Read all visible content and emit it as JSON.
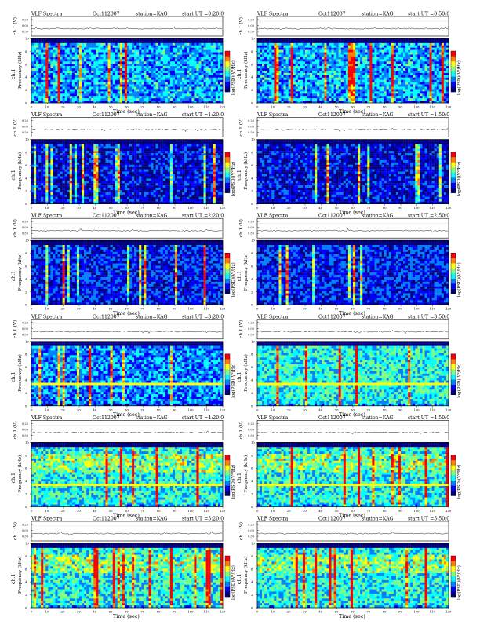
{
  "page": {
    "title_prefix": "VLF Spectra",
    "date": "Oct112007",
    "station_text": "station=KAG",
    "start_prefix": "start UT =",
    "ch_label": "ch.1 (V)",
    "freq_label_line1": "ch.1",
    "freq_label_line2": "Frequency (kHz)",
    "time_label": "Time (sec)",
    "colorbar_label": "log(PSD)(V²/Hz)"
  },
  "colors": {
    "background": "#ffffff",
    "axis": "#000000",
    "colormap": [
      "#00007f",
      "#0000ff",
      "#007fff",
      "#00ffff",
      "#7fff7f",
      "#ffff00",
      "#ff7f00",
      "#ff0000"
    ]
  },
  "chart_data": [
    {
      "type": "heatmap",
      "start": "0:20:0",
      "xlim": [
        0,
        120
      ],
      "ylim": [
        0,
        10
      ],
      "level": 0.35,
      "burst": 0.9,
      "line": false,
      "band": false,
      "ch_ticks": [
        "0.20",
        "0.00",
        "0.50"
      ]
    },
    {
      "type": "heatmap",
      "start": "0:50:0",
      "xlim": [
        0,
        120
      ],
      "ylim": [
        0,
        10
      ],
      "level": 0.35,
      "burst": 0.9,
      "line": false,
      "band": false,
      "ch_ticks": [
        "0.20",
        "0.00",
        "0.50"
      ]
    },
    {
      "type": "heatmap",
      "start": "1:20:0",
      "xlim": [
        0,
        120
      ],
      "ylim": [
        0,
        10
      ],
      "level": 0.15,
      "burst": 0.95,
      "line": false,
      "band": false,
      "ch_ticks": [
        "0.20",
        "0.00",
        "0.50"
      ]
    },
    {
      "type": "heatmap",
      "start": "1:50:0",
      "xlim": [
        0,
        120
      ],
      "ylim": [
        0,
        10
      ],
      "level": 0.15,
      "burst": 0.95,
      "line": false,
      "band": false,
      "ch_ticks": [
        "0.20",
        "0.00",
        "0.50"
      ]
    },
    {
      "type": "heatmap",
      "start": "2:20:0",
      "xlim": [
        0,
        120
      ],
      "ylim": [
        0,
        10
      ],
      "level": 0.2,
      "burst": 0.55,
      "line": false,
      "band": false,
      "ch_ticks": [
        "0.20",
        "0.00",
        "0.50"
      ]
    },
    {
      "type": "heatmap",
      "start": "2:50:0",
      "xlim": [
        0,
        120
      ],
      "ylim": [
        0,
        10
      ],
      "level": 0.2,
      "burst": 0.55,
      "line": false,
      "band": false,
      "ch_ticks": [
        "0.20",
        "0.00",
        "0.50"
      ]
    },
    {
      "type": "heatmap",
      "start": "3:20:0",
      "xlim": [
        0,
        120
      ],
      "ylim": [
        0,
        10
      ],
      "level": 0.3,
      "burst": 0.7,
      "line": true,
      "band": false,
      "ch_ticks": [
        "0.20",
        "0.00",
        "0.50"
      ]
    },
    {
      "type": "heatmap",
      "start": "3:50:0",
      "xlim": [
        0,
        120
      ],
      "ylim": [
        0,
        10
      ],
      "level": 0.45,
      "burst": 0.6,
      "line": true,
      "band": false,
      "ch_ticks": [
        "0.20",
        "0.00",
        "0.50"
      ]
    },
    {
      "type": "heatmap",
      "start": "4:20:0",
      "xlim": [
        0,
        120
      ],
      "ylim": [
        0,
        10
      ],
      "level": 0.45,
      "burst": 0.75,
      "line": true,
      "band": true,
      "ch_ticks": [
        "0.20",
        "0.00",
        "0.50"
      ]
    },
    {
      "type": "heatmap",
      "start": "4:50:0",
      "xlim": [
        0,
        120
      ],
      "ylim": [
        0,
        10
      ],
      "level": 0.45,
      "burst": 0.75,
      "line": true,
      "band": true,
      "ch_ticks": [
        "0.20",
        "0.00",
        "0.50"
      ]
    },
    {
      "type": "heatmap",
      "start": "5:20:0",
      "xlim": [
        0,
        120
      ],
      "ylim": [
        0,
        10
      ],
      "level": 0.45,
      "burst": 0.95,
      "line": false,
      "band": true,
      "ch_ticks": [
        "0.20",
        "0.00",
        "0.50"
      ]
    },
    {
      "type": "heatmap",
      "start": "5:50:0",
      "xlim": [
        0,
        120
      ],
      "ylim": [
        0,
        10
      ],
      "level": 0.45,
      "burst": 0.95,
      "line": false,
      "band": true,
      "ch_ticks": [
        "0.20",
        "0.00",
        "0.50"
      ]
    }
  ]
}
